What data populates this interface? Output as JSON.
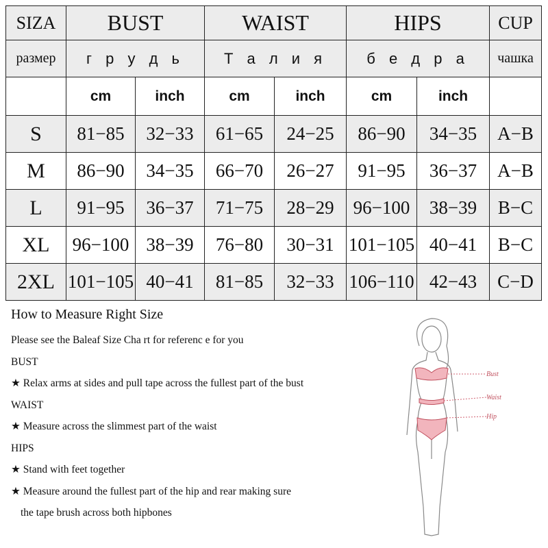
{
  "table": {
    "header_row1": [
      "SIZA",
      "BUST",
      "WAIST",
      "HIPS",
      "CUP"
    ],
    "header_row2": [
      "размер",
      "г р у д ь",
      "Т а л и я",
      "б е д р а",
      "чашка"
    ],
    "units": [
      "cm",
      "inch",
      "cm",
      "inch",
      "cm",
      "inch"
    ],
    "rows": [
      [
        "S",
        "81−85",
        "32−33",
        "61−65",
        "24−25",
        "86−90",
        "34−35",
        "A−B"
      ],
      [
        "M",
        "86−90",
        "34−35",
        "66−70",
        "26−27",
        "91−95",
        "36−37",
        "A−B"
      ],
      [
        "L",
        "91−95",
        "36−37",
        "71−75",
        "28−29",
        "96−100",
        "38−39",
        "B−C"
      ],
      [
        "XL",
        "96−100",
        "38−39",
        "76−80",
        "30−31",
        "101−105",
        "40−41",
        "B−C"
      ],
      [
        "2XL",
        "101−105",
        "40−41",
        "81−85",
        "32−33",
        "106−110",
        "42−43",
        "C−D"
      ]
    ]
  },
  "guide": {
    "title": "How to Measure Right Size",
    "intro": "Please  see  the Baleaf Size Cha rt for referenc e for you",
    "bust_heading": "BUST",
    "bust_tip": "★ Relax arms at sides and pull tape across the fullest part of the bust",
    "waist_heading": "WAIST",
    "waist_tip": "★ Measure across the slimmest part of the waist",
    "hips_heading": "HIPS",
    "hips_tip1": "★ Stand with feet together",
    "hips_tip2": "★ Measure around the fullest part of the hip and rear making sure",
    "hips_tip2_cont": "the tape brush across both hipbones"
  },
  "figure": {
    "labels": [
      "Bust",
      "Waist",
      "Hip"
    ],
    "accent": "#e07a8a"
  }
}
